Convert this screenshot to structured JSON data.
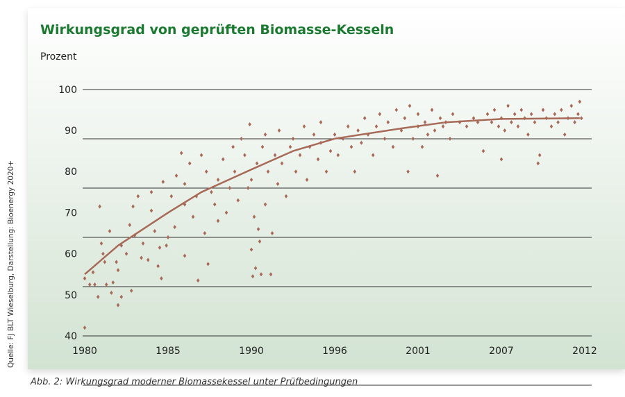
{
  "chart_data": {
    "type": "scatter",
    "title": "Wirkungsgrad von geprüften Biomasse-Kesseln",
    "ylabel": "Prozent",
    "xlabel": "",
    "ylim": [
      40,
      100
    ],
    "yticks": [
      100,
      90,
      80,
      70,
      60,
      50,
      40
    ],
    "xticks": [
      1980,
      1985,
      1990,
      1996,
      2001,
      2007,
      2012
    ],
    "grid": true,
    "point_color": "#a86a58",
    "trend": [
      [
        1980,
        55
      ],
      [
        1982,
        62
      ],
      [
        1985,
        70
      ],
      [
        1987,
        75
      ],
      [
        1990,
        80.5
      ],
      [
        1993,
        85
      ],
      [
        1996,
        88
      ],
      [
        2000,
        90.5
      ],
      [
        2003,
        92
      ],
      [
        2007,
        92.8
      ],
      [
        2011.7,
        93
      ]
    ],
    "points": [
      [
        1980,
        42
      ],
      [
        1980,
        54
      ],
      [
        1980.3,
        52.5
      ],
      [
        1980.5,
        55.5
      ],
      [
        1980.6,
        52.5
      ],
      [
        1980.8,
        49.5
      ],
      [
        1980.9,
        71.5
      ],
      [
        1981,
        62.5
      ],
      [
        1981.1,
        60
      ],
      [
        1981.2,
        58
      ],
      [
        1981.3,
        52.5
      ],
      [
        1981.5,
        65.5
      ],
      [
        1981.6,
        50.5
      ],
      [
        1981.7,
        53
      ],
      [
        1981.9,
        58
      ],
      [
        1982,
        56
      ],
      [
        1982,
        47.5
      ],
      [
        1982.2,
        49.5
      ],
      [
        1982.2,
        62
      ],
      [
        1982.5,
        60
      ],
      [
        1982.7,
        67
      ],
      [
        1982.8,
        51
      ],
      [
        1982.9,
        71.5
      ],
      [
        1983,
        64.5
      ],
      [
        1983.2,
        74
      ],
      [
        1983.4,
        59
      ],
      [
        1983.5,
        62.5
      ],
      [
        1983.8,
        58.5
      ],
      [
        1984,
        75
      ],
      [
        1984,
        70.5
      ],
      [
        1984.2,
        65.5
      ],
      [
        1984.4,
        57
      ],
      [
        1984.5,
        61.5
      ],
      [
        1984.6,
        54
      ],
      [
        1984.7,
        77.5
      ],
      [
        1984.9,
        62
      ],
      [
        1985,
        64
      ],
      [
        1985.2,
        74
      ],
      [
        1985.4,
        66.5
      ],
      [
        1985.5,
        79
      ],
      [
        1985.8,
        84.5
      ],
      [
        1986,
        72
      ],
      [
        1986,
        77
      ],
      [
        1986,
        59.5
      ],
      [
        1986.3,
        82
      ],
      [
        1986.5,
        69
      ],
      [
        1986.7,
        74
      ],
      [
        1986.8,
        53.5
      ],
      [
        1987,
        84
      ],
      [
        1987.2,
        65
      ],
      [
        1987.3,
        80
      ],
      [
        1987.4,
        57.5
      ],
      [
        1987.6,
        75
      ],
      [
        1987.8,
        72
      ],
      [
        1988,
        78
      ],
      [
        1988,
        68
      ],
      [
        1988.3,
        83
      ],
      [
        1988.5,
        70
      ],
      [
        1988.7,
        76
      ],
      [
        1988.9,
        86
      ],
      [
        1989,
        80
      ],
      [
        1989.2,
        73
      ],
      [
        1989.4,
        88
      ],
      [
        1989.6,
        84
      ],
      [
        1989.8,
        76
      ],
      [
        1989.9,
        91.5
      ],
      [
        1990,
        61
      ],
      [
        1990,
        78
      ],
      [
        1990.1,
        54.5
      ],
      [
        1990.2,
        69
      ],
      [
        1990.3,
        56.5
      ],
      [
        1990.4,
        82
      ],
      [
        1990.5,
        66
      ],
      [
        1990.6,
        63
      ],
      [
        1990.7,
        55
      ],
      [
        1990.8,
        86
      ],
      [
        1991,
        72
      ],
      [
        1991,
        89
      ],
      [
        1991.2,
        80
      ],
      [
        1991.4,
        55
      ],
      [
        1991.5,
        65
      ],
      [
        1991.7,
        84
      ],
      [
        1991.9,
        77
      ],
      [
        1992,
        90
      ],
      [
        1992.2,
        82
      ],
      [
        1992.5,
        74
      ],
      [
        1992.8,
        86
      ],
      [
        1993,
        88
      ],
      [
        1993.2,
        80
      ],
      [
        1993.5,
        84
      ],
      [
        1993.8,
        91
      ],
      [
        1994,
        78
      ],
      [
        1994.2,
        86
      ],
      [
        1994.5,
        89
      ],
      [
        1994.8,
        83
      ],
      [
        1995,
        87
      ],
      [
        1995,
        92
      ],
      [
        1995.4,
        80
      ],
      [
        1995.7,
        85
      ],
      [
        1996,
        89
      ],
      [
        1996.2,
        84
      ],
      [
        1996.5,
        88
      ],
      [
        1996.8,
        91
      ],
      [
        1997,
        86
      ],
      [
        1997.2,
        80
      ],
      [
        1997.4,
        90
      ],
      [
        1997.6,
        87
      ],
      [
        1997.8,
        93
      ],
      [
        1998,
        89
      ],
      [
        1998.3,
        84
      ],
      [
        1998.5,
        91
      ],
      [
        1998.7,
        94
      ],
      [
        1999,
        88
      ],
      [
        1999.2,
        92
      ],
      [
        1999.5,
        86
      ],
      [
        1999.7,
        95
      ],
      [
        2000,
        90
      ],
      [
        2000.2,
        93
      ],
      [
        2000.4,
        80
      ],
      [
        2000.5,
        96
      ],
      [
        2000.7,
        88
      ],
      [
        2001,
        91
      ],
      [
        2001,
        94
      ],
      [
        2001.3,
        86
      ],
      [
        2001.5,
        92
      ],
      [
        2001.7,
        89
      ],
      [
        2002,
        95
      ],
      [
        2002.2,
        90
      ],
      [
        2002.4,
        79
      ],
      [
        2002.6,
        93
      ],
      [
        2002.8,
        91
      ],
      [
        2003,
        92
      ],
      [
        2003.3,
        88
      ],
      [
        2003.5,
        94
      ],
      [
        2004,
        92
      ],
      [
        2004.5,
        91
      ],
      [
        2005,
        93
      ],
      [
        2005.3,
        92
      ],
      [
        2005.7,
        85
      ],
      [
        2006,
        94
      ],
      [
        2006.3,
        92
      ],
      [
        2006.5,
        95
      ],
      [
        2006.8,
        91
      ],
      [
        2007,
        83
      ],
      [
        2007,
        93
      ],
      [
        2007.2,
        90
      ],
      [
        2007.4,
        96
      ],
      [
        2007.6,
        92
      ],
      [
        2007.8,
        94
      ],
      [
        2008,
        91
      ],
      [
        2008.2,
        95
      ],
      [
        2008.4,
        93
      ],
      [
        2008.6,
        89
      ],
      [
        2008.8,
        94
      ],
      [
        2009,
        92
      ],
      [
        2009.2,
        82
      ],
      [
        2009.3,
        84
      ],
      [
        2009.5,
        95
      ],
      [
        2009.7,
        93
      ],
      [
        2010,
        91
      ],
      [
        2010.2,
        94
      ],
      [
        2010.4,
        92
      ],
      [
        2010.6,
        95
      ],
      [
        2010.8,
        89
      ],
      [
        2011,
        93
      ],
      [
        2011.2,
        96
      ],
      [
        2011.4,
        92
      ],
      [
        2011.6,
        94
      ],
      [
        2011.7,
        97
      ],
      [
        2011.8,
        93
      ]
    ]
  },
  "source": "Quelle: FJ BLT Wieselburg, Darstellung: Bioenergy 2020+",
  "caption": "Abb. 2: Wirkungsgrad moderner Biomassekessel unter Prüfbedingungen"
}
